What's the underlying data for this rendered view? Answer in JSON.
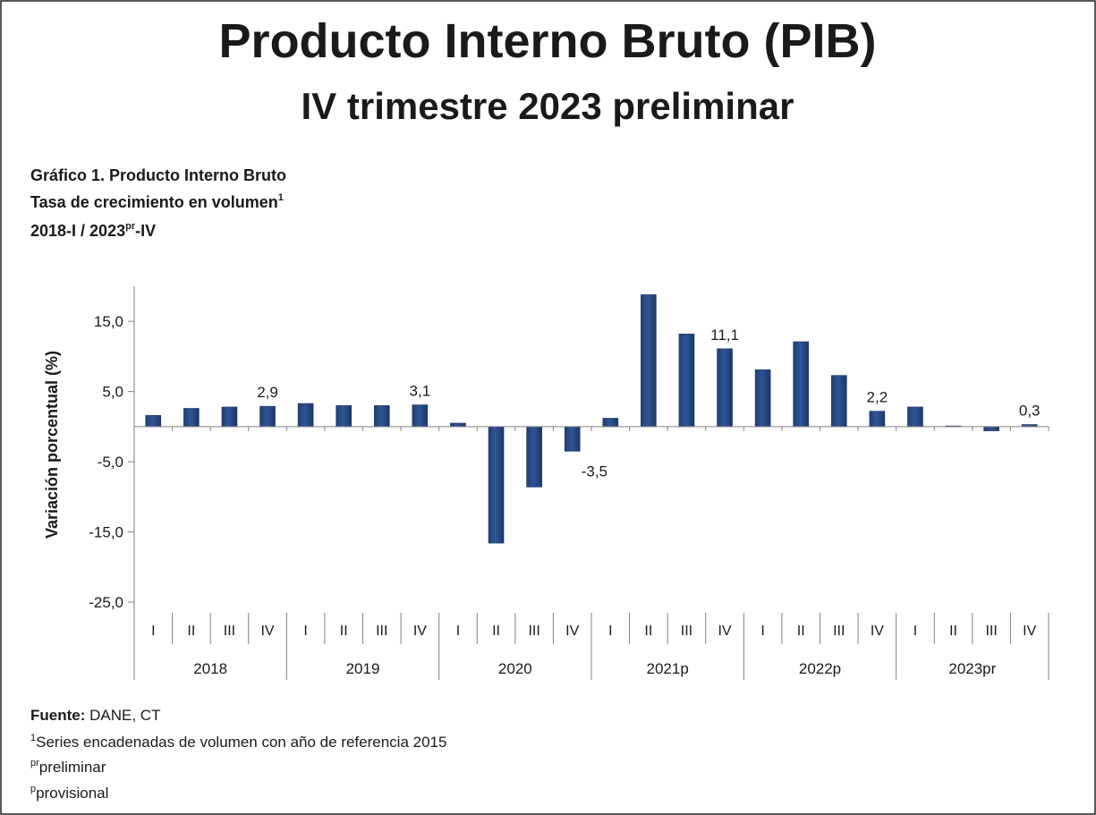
{
  "chart_data": {
    "type": "bar",
    "title": "Producto Interno Bruto (PIB)",
    "subtitle": "IV trimestre 2023 preliminar",
    "chart_label": "Gráfico 1. Producto Interno Bruto",
    "chart_line2": {
      "text": "Tasa de crecimiento en volumen",
      "sup": "1"
    },
    "chart_line3": {
      "text1": "2018-I / 2023",
      "sup": "pr",
      "text2": "-IV"
    },
    "y_label": "Variación porcentual (%)",
    "categories": [
      "I",
      "II",
      "III",
      "IV",
      "I",
      "II",
      "III",
      "IV",
      "I",
      "II",
      "III",
      "IV",
      "I",
      "II",
      "III",
      "IV",
      "I",
      "II",
      "III",
      "IV",
      "I",
      "II",
      "III",
      "IV"
    ],
    "groups": [
      "2018",
      "2019",
      "2020",
      "2021p",
      "2022p",
      "2023pr"
    ],
    "values": [
      1.6,
      2.6,
      2.8,
      2.9,
      3.3,
      3.0,
      3.0,
      3.1,
      0.5,
      -16.6,
      -8.6,
      -3.5,
      1.2,
      18.8,
      13.2,
      11.1,
      8.1,
      12.1,
      7.3,
      2.2,
      2.8,
      0.1,
      -0.6,
      0.3
    ],
    "value_labels": [
      null,
      null,
      null,
      "2,9",
      null,
      null,
      null,
      "3,1",
      null,
      null,
      null,
      "-3,5",
      null,
      null,
      null,
      "11,1",
      null,
      null,
      null,
      "2,2",
      null,
      null,
      null,
      "0,3"
    ],
    "color": "#2f5597",
    "ylim": [
      -25,
      20
    ],
    "yticks": [
      {
        "value": -25,
        "label": "-25,0"
      },
      {
        "value": -15,
        "label": "-15,0"
      },
      {
        "value": -5,
        "label": "-5,0"
      },
      {
        "value": 5,
        "label": "5,0"
      },
      {
        "value": 15,
        "label": "15,0"
      }
    ],
    "grid": false,
    "footer": {
      "source_label": "Fuente:",
      "source": " DANE, CT",
      "note1": {
        "sup": "1",
        "text": "Series encadenadas de volumen con año de referencia 2015"
      },
      "note2": {
        "sup": "pr",
        "text": "preliminar"
      },
      "note3": {
        "sup": "p",
        "text": "provisional"
      }
    }
  }
}
